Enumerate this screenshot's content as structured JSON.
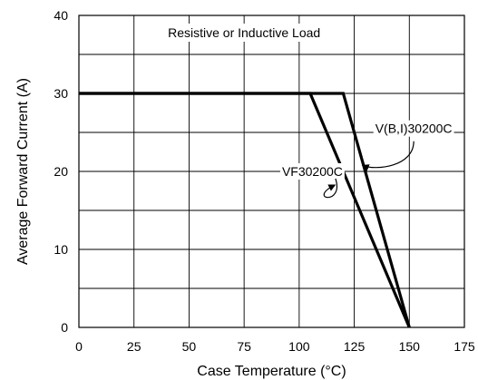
{
  "chart_data": {
    "type": "line",
    "title": "",
    "xlabel": "Case Temperature (°C)",
    "ylabel": "Average Forward Current (A)",
    "xlim": [
      0,
      175
    ],
    "ylim": [
      0,
      40
    ],
    "x_ticks": [
      "0",
      "25",
      "50",
      "75",
      "100",
      "125",
      "150",
      "175"
    ],
    "y_ticks": [
      "0",
      "10",
      "20",
      "30",
      "40"
    ],
    "grid": true,
    "annotation": "Resistive or Inductive Load",
    "series": [
      {
        "name": "V(B,I)30200C",
        "x": [
          0,
          120,
          150
        ],
        "y": [
          30,
          30,
          0
        ]
      },
      {
        "name": "VF30200C",
        "x": [
          0,
          105,
          150
        ],
        "y": [
          30,
          30,
          0
        ]
      }
    ],
    "series_labels": [
      {
        "text": "V(B,I)30200C",
        "label_x": 152,
        "label_y": 25.5,
        "arrow_to_x": 127.5,
        "arrow_to_y": 21
      },
      {
        "text": "VF30200C",
        "label_x": 106,
        "label_y": 20,
        "arrow_to_x": 117.5,
        "arrow_to_y": 18.5
      }
    ],
    "colors": {
      "line": "#000000",
      "grid": "#000000",
      "background": "#ffffff"
    }
  }
}
